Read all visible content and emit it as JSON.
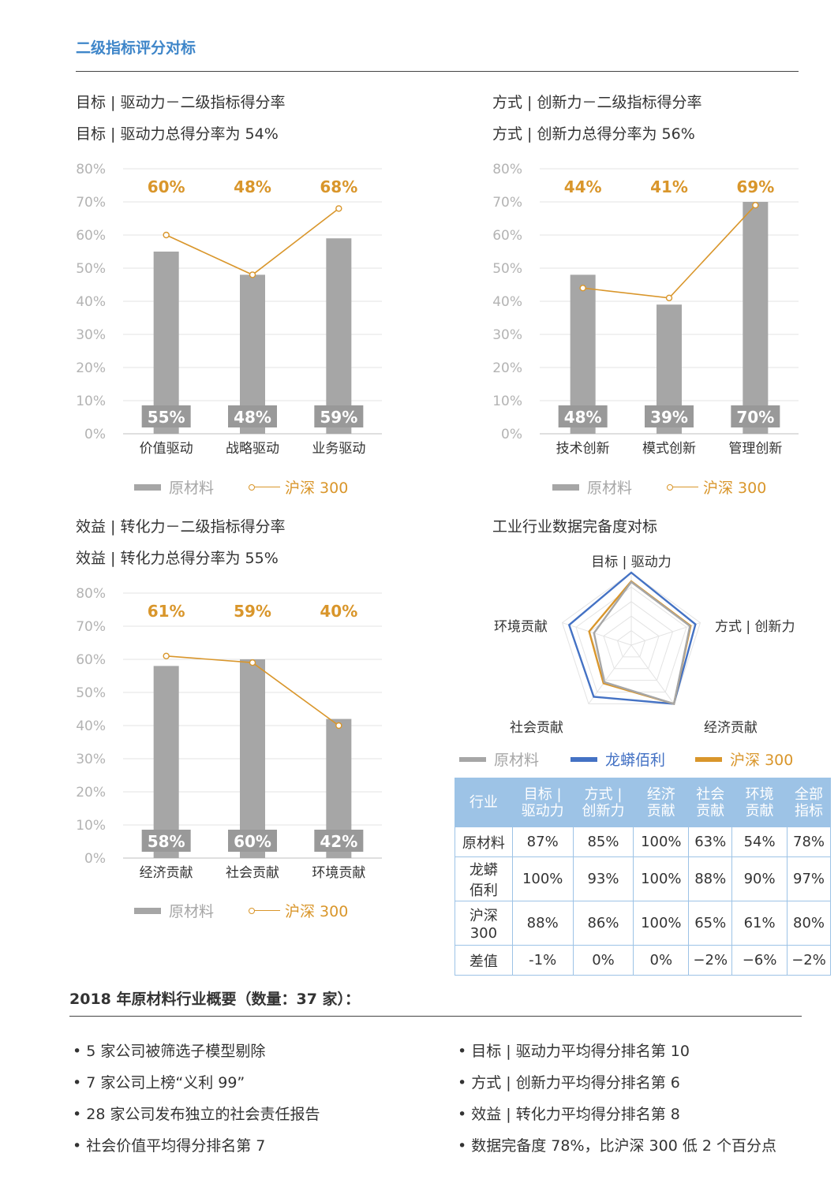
{
  "page": {
    "title": "二级指标评分对标"
  },
  "legend": {
    "material": "原材料",
    "hs300": "沪深 300",
    "longmang": "龙蟒佰利"
  },
  "chart_data": [
    {
      "type": "bar",
      "title": "目标 | 驱动力－二级指标得分率",
      "subtitle": "目标 | 驱动力总得分率为 54%",
      "categories": [
        "价值驱动",
        "战略驱动",
        "业务驱动"
      ],
      "series": [
        {
          "name": "原材料",
          "type": "bar",
          "values": [
            55,
            48,
            59
          ],
          "labels": [
            "55%",
            "48%",
            "59%"
          ],
          "color": "#a6a6a6"
        },
        {
          "name": "沪深 300",
          "type": "line",
          "values": [
            60,
            48,
            68
          ],
          "labels": [
            "60%",
            "48%",
            "68%"
          ],
          "color": "#d9962b"
        }
      ],
      "ylim": [
        0,
        80
      ],
      "yticks": [
        "0%",
        "10%",
        "20%",
        "30%",
        "40%",
        "50%",
        "60%",
        "70%",
        "80%"
      ],
      "grid": true,
      "legend_position": "bottom"
    },
    {
      "type": "bar",
      "title": "方式 | 创新力－二级指标得分率",
      "subtitle": "方式 | 创新力总得分率为 56%",
      "categories": [
        "技术创新",
        "模式创新",
        "管理创新"
      ],
      "series": [
        {
          "name": "原材料",
          "type": "bar",
          "values": [
            48,
            39,
            70
          ],
          "labels": [
            "48%",
            "39%",
            "70%"
          ],
          "color": "#a6a6a6"
        },
        {
          "name": "沪深 300",
          "type": "line",
          "values": [
            44,
            41,
            69
          ],
          "labels": [
            "44%",
            "41%",
            "69%"
          ],
          "color": "#d9962b"
        }
      ],
      "ylim": [
        0,
        80
      ],
      "yticks": [
        "0%",
        "10%",
        "20%",
        "30%",
        "40%",
        "50%",
        "60%",
        "70%",
        "80%"
      ],
      "grid": true,
      "legend_position": "bottom"
    },
    {
      "type": "bar",
      "title": "效益 | 转化力－二级指标得分率",
      "subtitle": "效益 | 转化力总得分率为 55%",
      "categories": [
        "经济贡献",
        "社会贡献",
        "环境贡献"
      ],
      "series": [
        {
          "name": "原材料",
          "type": "bar",
          "values": [
            58,
            60,
            42
          ],
          "labels": [
            "58%",
            "60%",
            "42%"
          ],
          "color": "#a6a6a6"
        },
        {
          "name": "沪深 300",
          "type": "line",
          "values": [
            61,
            59,
            40
          ],
          "labels": [
            "61%",
            "59%",
            "40%"
          ],
          "color": "#d9962b"
        }
      ],
      "ylim": [
        0,
        80
      ],
      "yticks": [
        "0%",
        "10%",
        "20%",
        "30%",
        "40%",
        "50%",
        "60%",
        "70%",
        "80%"
      ],
      "grid": true,
      "legend_position": "bottom"
    },
    {
      "type": "radar",
      "title": "工业行业数据完备度对标",
      "axes": [
        "目标 | 驱动力",
        "方式 | 创新力",
        "经济贡献",
        "社会贡献",
        "环境贡献"
      ],
      "series": [
        {
          "name": "原材料",
          "values": [
            87,
            85,
            100,
            63,
            54
          ],
          "color": "#a6a6a6"
        },
        {
          "name": "龙蟒佰利",
          "values": [
            100,
            93,
            100,
            88,
            90
          ],
          "color": "#4472c4"
        },
        {
          "name": "沪深 300",
          "values": [
            88,
            86,
            100,
            65,
            61
          ],
          "color": "#d9962b"
        }
      ],
      "ylim": [
        0,
        100
      ],
      "legend_position": "bottom"
    },
    {
      "type": "table",
      "headers": [
        {
          "l1": "行业",
          "l2": ""
        },
        {
          "l1": "目标 |",
          "l2": "驱动力"
        },
        {
          "l1": "方式 |",
          "l2": "创新力"
        },
        {
          "l1": "经济",
          "l2": "贡献"
        },
        {
          "l1": "社会",
          "l2": "贡献"
        },
        {
          "l1": "环境",
          "l2": "贡献"
        },
        {
          "l1": "全部",
          "l2": "指标"
        }
      ],
      "rows": [
        {
          "l1": "原材料",
          "l2": "",
          "cells": [
            "87%",
            "85%",
            "100%",
            "63%",
            "54%",
            "78%"
          ]
        },
        {
          "l1": "龙蟒",
          "l2": "佰利",
          "cells": [
            "100%",
            "93%",
            "100%",
            "88%",
            "90%",
            "97%"
          ]
        },
        {
          "l1": "沪深",
          "l2": "300",
          "cells": [
            "88%",
            "86%",
            "100%",
            "65%",
            "61%",
            "80%"
          ]
        },
        {
          "l1": "差值",
          "l2": "",
          "cells": [
            "-1%",
            "0%",
            "0%",
            "−2%",
            "−6%",
            "−2%"
          ]
        }
      ]
    }
  ],
  "summary": {
    "heading": "2018 年原材料行业概要（数量：37 家）：",
    "left": [
      "• 5 家公司被筛选子模型剔除",
      "• 7 家公司上榜“义利 99”",
      "• 28 家公司发布独立的社会责任报告",
      "• 社会价值平均得分排名第 7"
    ],
    "right": [
      "• 目标 | 驱动力平均得分排名第 10",
      "• 方式 | 创新力平均得分排名第 6",
      "• 效益 | 转化力平均得分排名第 8",
      "• 数据完备度 78%，比沪深 300 低 2 个百分点"
    ]
  }
}
